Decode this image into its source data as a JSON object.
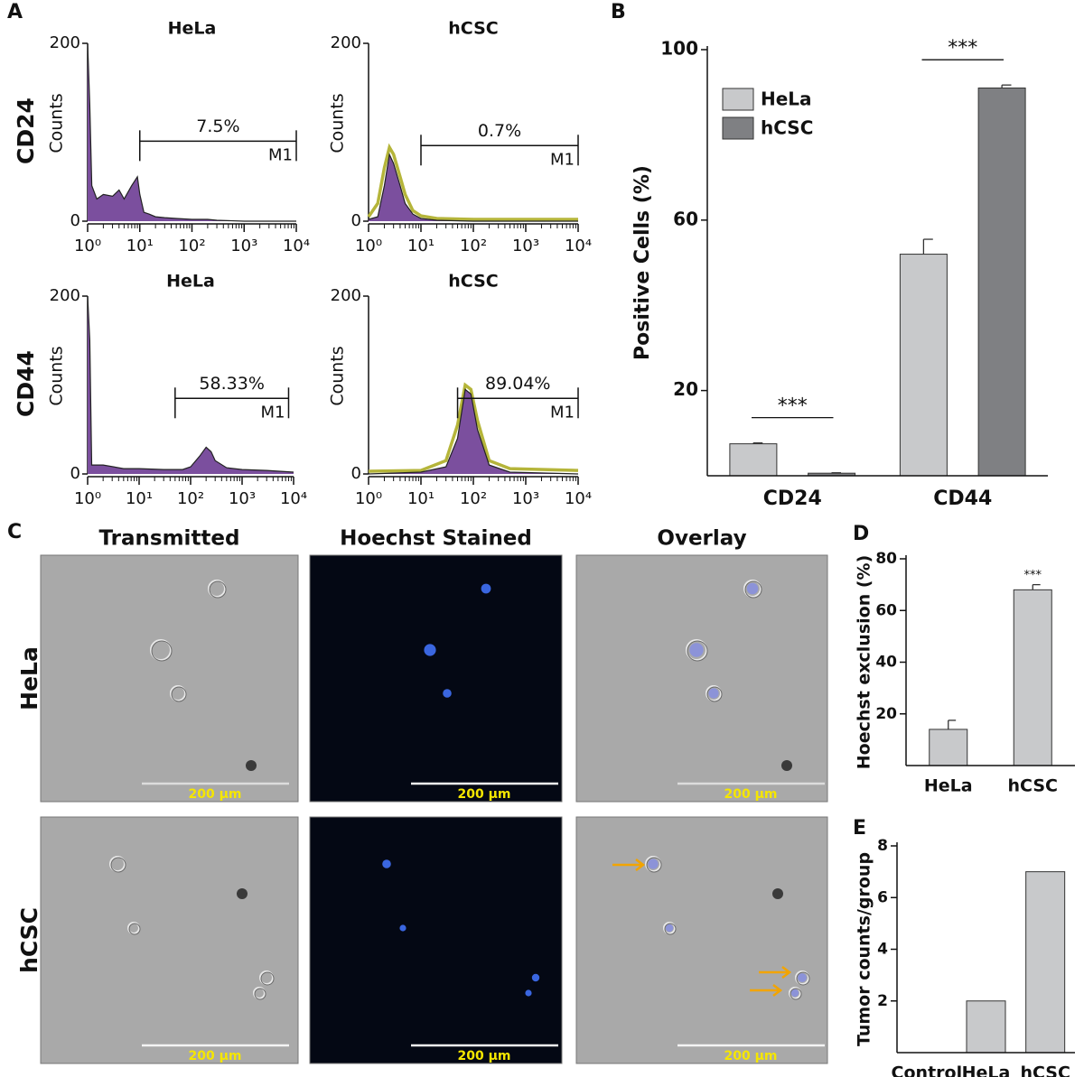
{
  "panel_labels": [
    "A",
    "B",
    "C",
    "D",
    "E"
  ],
  "panel_a": {
    "row_labels": [
      "CD24",
      "CD44"
    ]
  },
  "panel_c": {
    "columns": [
      "Transmitted",
      "Hoechst Stained",
      "Overlay"
    ],
    "rows": [
      "HeLa",
      "hCSC"
    ],
    "scale_bar": "200 μm"
  },
  "chart_data": [
    {
      "type": "area",
      "title": "HeLa",
      "y_label": "Counts",
      "log_x": true,
      "xlim": [
        1,
        10000
      ],
      "ylim": [
        0,
        200
      ],
      "xticks": [
        {
          "value": 1,
          "label": "10⁰"
        },
        {
          "value": 10,
          "label": "10¹"
        },
        {
          "value": 100,
          "label": "10²"
        },
        {
          "value": 1000,
          "label": "10³"
        },
        {
          "value": 10000,
          "label": "10⁴"
        }
      ],
      "yticks": [
        0,
        200
      ],
      "x": [
        1,
        1.1,
        1.2,
        1.5,
        2,
        3,
        4,
        5,
        7,
        9,
        10,
        12,
        15,
        20,
        30,
        50,
        100,
        200,
        300,
        1000,
        10000
      ],
      "series": [
        {
          "color": "#7b4f9e",
          "fill": true,
          "values": [
            200,
            130,
            40,
            25,
            30,
            28,
            35,
            25,
            40,
            50,
            30,
            10,
            8,
            5,
            4,
            3,
            2,
            2,
            1,
            0,
            0
          ]
        }
      ],
      "gate": {
        "from": 10,
        "to": 10000,
        "level": 90,
        "label": "7.5%",
        "marker": "M1"
      }
    },
    {
      "type": "area",
      "title": "hCSC",
      "y_label": "Counts",
      "log_x": true,
      "xlim": [
        1,
        10000
      ],
      "ylim": [
        0,
        200
      ],
      "xticks": [
        {
          "value": 1,
          "label": "10⁰"
        },
        {
          "value": 10,
          "label": "10¹"
        },
        {
          "value": 100,
          "label": "10²"
        },
        {
          "value": 1000,
          "label": "10³"
        },
        {
          "value": 10000,
          "label": "10⁴"
        }
      ],
      "yticks": [
        0,
        200
      ],
      "x": [
        1,
        1.5,
        2,
        2.5,
        3,
        4,
        5,
        7,
        10,
        20,
        100,
        10000
      ],
      "series": [
        {
          "color": "#b5b53a",
          "fill": false,
          "values": [
            5,
            20,
            60,
            83,
            75,
            50,
            30,
            12,
            6,
            3,
            2,
            2
          ]
        },
        {
          "color": "#7b4f9e",
          "fill": true,
          "values": [
            2,
            5,
            40,
            75,
            65,
            40,
            20,
            8,
            3,
            1,
            0,
            0
          ]
        }
      ],
      "gate": {
        "from": 10,
        "to": 10000,
        "level": 85,
        "label": "0.7%",
        "marker": "M1"
      }
    },
    {
      "type": "area",
      "title": "HeLa",
      "y_label": "Counts",
      "log_x": true,
      "xlim": [
        1,
        10000
      ],
      "ylim": [
        0,
        200
      ],
      "xticks": [
        {
          "value": 1,
          "label": "10⁰"
        },
        {
          "value": 10,
          "label": "10¹"
        },
        {
          "value": 100,
          "label": "10²"
        },
        {
          "value": 1000,
          "label": "10³"
        },
        {
          "value": 10000,
          "label": "10⁴"
        }
      ],
      "yticks": [
        0,
        200
      ],
      "x": [
        1,
        1.1,
        1.2,
        2,
        5,
        10,
        30,
        70,
        100,
        150,
        200,
        250,
        300,
        500,
        1000,
        3000,
        10000
      ],
      "series": [
        {
          "color": "#7b4f9e",
          "fill": true,
          "values": [
            200,
            150,
            10,
            10,
            6,
            6,
            5,
            5,
            8,
            20,
            30,
            25,
            15,
            7,
            5,
            4,
            2
          ]
        }
      ],
      "gate": {
        "from": 50,
        "to": 8000,
        "level": 85,
        "label": "58.33%",
        "marker": "M1"
      }
    },
    {
      "type": "area",
      "title": "hCSC",
      "y_label": "Counts",
      "log_x": true,
      "xlim": [
        1,
        10000
      ],
      "ylim": [
        0,
        200
      ],
      "xticks": [
        {
          "value": 1,
          "label": "10⁰"
        },
        {
          "value": 10,
          "label": "10¹"
        },
        {
          "value": 100,
          "label": "10²"
        },
        {
          "value": 1000,
          "label": "10³"
        },
        {
          "value": 10000,
          "label": "10⁴"
        }
      ],
      "yticks": [
        0,
        200
      ],
      "x": [
        1,
        10,
        30,
        50,
        70,
        90,
        120,
        200,
        500,
        10000
      ],
      "series": [
        {
          "color": "#b5b53a",
          "fill": false,
          "values": [
            3,
            4,
            15,
            55,
            100,
            95,
            60,
            15,
            6,
            4
          ]
        },
        {
          "color": "#7b4f9e",
          "fill": true,
          "values": [
            0,
            2,
            8,
            40,
            95,
            90,
            50,
            10,
            2,
            0
          ]
        }
      ],
      "gate": {
        "from": 50,
        "to": 10000,
        "level": 85,
        "label": "89.04%",
        "marker": "M1"
      }
    },
    {
      "type": "bar",
      "y_label": "Positive Cells (%)",
      "categories": [
        "CD24",
        "CD44"
      ],
      "series": [
        {
          "name": "HeLa",
          "color": "#c8c9cb",
          "values": [
            7.5,
            52
          ],
          "errors": [
            0.2,
            3.5
          ]
        },
        {
          "name": "hCSC",
          "color": "#7f8083",
          "values": [
            0.6,
            91
          ],
          "errors": [
            0.1,
            0.7
          ]
        }
      ],
      "ylim": [
        0,
        100
      ],
      "yticks": [
        20,
        60,
        100
      ],
      "legend": "upper left",
      "annotations": [
        {
          "text": "***",
          "category": 0
        },
        {
          "text": "***",
          "category": 1
        }
      ]
    },
    {
      "type": "bar",
      "y_label": "Hoechst exclusion (%)",
      "categories": [
        "HeLa",
        "hCSC"
      ],
      "values": [
        14,
        68
      ],
      "errors": [
        3.5,
        2
      ],
      "color": "#c8c9cb",
      "ylim": [
        0,
        80
      ],
      "yticks": [
        20,
        40,
        60,
        80
      ],
      "annotations": [
        {
          "text": "***",
          "category": 1
        }
      ]
    },
    {
      "type": "bar",
      "y_label": "Tumor counts/group",
      "categories": [
        "Control",
        "HeLa",
        "hCSC"
      ],
      "values": [
        0,
        2,
        7
      ],
      "color": "#c8c9cb",
      "ylim": [
        0,
        8
      ],
      "yticks": [
        2,
        4,
        6,
        8
      ]
    }
  ]
}
